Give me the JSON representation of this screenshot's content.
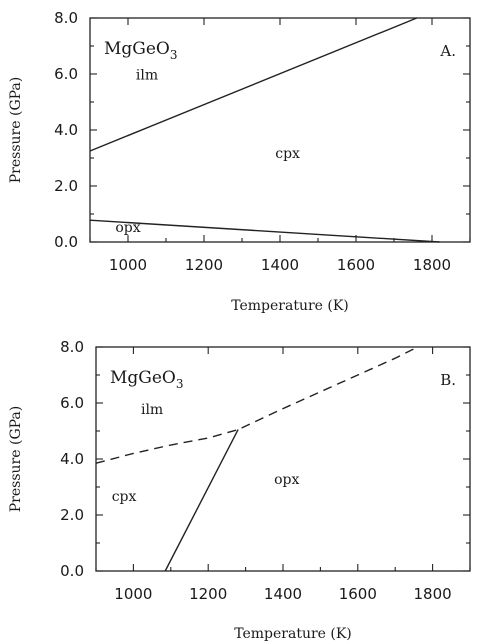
{
  "chart_data": [
    {
      "type": "line",
      "panel_label": "A.",
      "compound": {
        "base": "MgGeO",
        "subscript": "3"
      },
      "xlabel": "Temperature (K)",
      "ylabel": "Pressure (GPa)",
      "xlim": [
        900,
        1900
      ],
      "ylim": [
        0,
        8
      ],
      "xticks": [
        "1000",
        "1200",
        "1400",
        "1600",
        "1800"
      ],
      "yticks": [
        "0.0",
        "2.0",
        "4.0",
        "6.0",
        "8.0"
      ],
      "regions": [
        {
          "label": "ilm",
          "x": 1050,
          "y": 5.8
        },
        {
          "label": "cpx",
          "x": 1420,
          "y": 3.0
        },
        {
          "label": "opx",
          "x": 1000,
          "y": 0.35
        }
      ],
      "boundaries": [
        {
          "style": "solid",
          "x": [
            900,
            1760
          ],
          "y": [
            3.25,
            8.0
          ]
        },
        {
          "style": "solid",
          "x": [
            900,
            1820
          ],
          "y": [
            0.78,
            0.0
          ]
        }
      ]
    },
    {
      "type": "line",
      "panel_label": "B.",
      "compound": {
        "base": "MgGeO",
        "subscript": "3"
      },
      "xlabel": "Temperature (K)",
      "ylabel": "Pressure (GPa)",
      "xlim": [
        900,
        1900
      ],
      "ylim": [
        0,
        8
      ],
      "xticks": [
        "1000",
        "1200",
        "1400",
        "1600",
        "1800"
      ],
      "yticks": [
        "0.0",
        "2.0",
        "4.0",
        "6.0",
        "8.0"
      ],
      "regions": [
        {
          "label": "ilm",
          "x": 1050,
          "y": 5.6
        },
        {
          "label": "cpx",
          "x": 975,
          "y": 2.5
        },
        {
          "label": "opx",
          "x": 1410,
          "y": 3.1
        }
      ],
      "boundaries": [
        {
          "style": "dashed",
          "x": [
            900,
            1000,
            1100,
            1200,
            1280,
            1400,
            1500,
            1600,
            1700,
            1760
          ],
          "y": [
            3.85,
            4.2,
            4.5,
            4.75,
            5.05,
            5.8,
            6.4,
            7.0,
            7.6,
            8.0
          ]
        },
        {
          "style": "solid",
          "x": [
            1085,
            1280
          ],
          "y": [
            0.0,
            5.05
          ]
        }
      ]
    }
  ]
}
